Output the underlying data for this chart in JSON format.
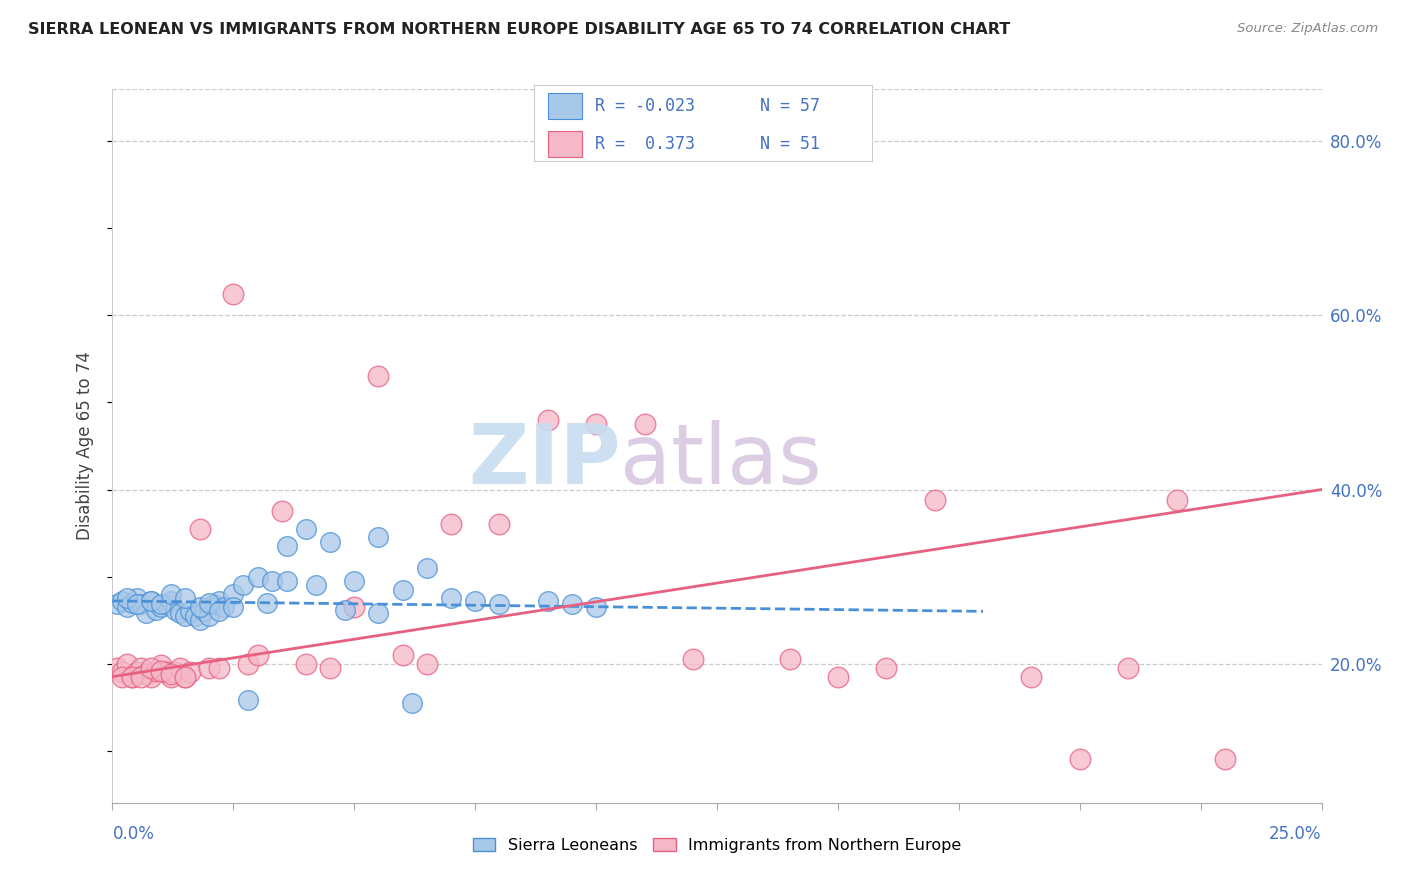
{
  "title": "SIERRA LEONEAN VS IMMIGRANTS FROM NORTHERN EUROPE DISABILITY AGE 65 TO 74 CORRELATION CHART",
  "source": "Source: ZipAtlas.com",
  "ylabel": "Disability Age 65 to 74",
  "ytick_vals": [
    0.2,
    0.4,
    0.6,
    0.8
  ],
  "xlim": [
    0.0,
    0.25
  ],
  "ylim": [
    0.04,
    0.86
  ],
  "color_blue": "#a8c8e8",
  "color_pink": "#f5b8c8",
  "color_blue_line": "#4a90d9",
  "color_pink_line": "#e86080",
  "watermark_zip_color": "#c8ddf0",
  "watermark_atlas_color": "#d8c8e0",
  "sierra_x": [
    0.001,
    0.002,
    0.003,
    0.004,
    0.005,
    0.006,
    0.007,
    0.008,
    0.009,
    0.01,
    0.011,
    0.012,
    0.013,
    0.014,
    0.015,
    0.016,
    0.017,
    0.018,
    0.019,
    0.02,
    0.021,
    0.022,
    0.023,
    0.025,
    0.027,
    0.03,
    0.033,
    0.036,
    0.04,
    0.045,
    0.05,
    0.055,
    0.06,
    0.065,
    0.07,
    0.075,
    0.08,
    0.09,
    0.095,
    0.1,
    0.003,
    0.005,
    0.008,
    0.01,
    0.012,
    0.015,
    0.018,
    0.02,
    0.022,
    0.025,
    0.028,
    0.032,
    0.036,
    0.042,
    0.048,
    0.055,
    0.062
  ],
  "sierra_y": [
    0.268,
    0.272,
    0.265,
    0.27,
    0.275,
    0.268,
    0.258,
    0.272,
    0.262,
    0.265,
    0.268,
    0.272,
    0.262,
    0.258,
    0.255,
    0.26,
    0.255,
    0.25,
    0.26,
    0.255,
    0.268,
    0.272,
    0.265,
    0.28,
    0.29,
    0.3,
    0.295,
    0.295,
    0.355,
    0.34,
    0.295,
    0.345,
    0.285,
    0.31,
    0.275,
    0.272,
    0.268,
    0.272,
    0.268,
    0.265,
    0.275,
    0.268,
    0.272,
    0.268,
    0.28,
    0.275,
    0.265,
    0.27,
    0.26,
    0.265,
    0.158,
    0.27,
    0.335,
    0.29,
    0.262,
    0.258,
    0.155
  ],
  "northern_x": [
    0.001,
    0.002,
    0.003,
    0.004,
    0.005,
    0.006,
    0.007,
    0.008,
    0.009,
    0.01,
    0.011,
    0.012,
    0.013,
    0.014,
    0.015,
    0.016,
    0.018,
    0.02,
    0.022,
    0.025,
    0.028,
    0.03,
    0.035,
    0.04,
    0.045,
    0.05,
    0.055,
    0.06,
    0.065,
    0.07,
    0.08,
    0.09,
    0.1,
    0.11,
    0.12,
    0.14,
    0.15,
    0.16,
    0.17,
    0.19,
    0.2,
    0.21,
    0.22,
    0.23,
    0.002,
    0.004,
    0.006,
    0.008,
    0.01,
    0.012,
    0.015
  ],
  "northern_y": [
    0.195,
    0.19,
    0.2,
    0.185,
    0.19,
    0.195,
    0.188,
    0.185,
    0.192,
    0.198,
    0.19,
    0.185,
    0.19,
    0.195,
    0.185,
    0.19,
    0.355,
    0.195,
    0.195,
    0.625,
    0.2,
    0.21,
    0.375,
    0.2,
    0.195,
    0.265,
    0.53,
    0.21,
    0.2,
    0.36,
    0.36,
    0.48,
    0.475,
    0.475,
    0.205,
    0.205,
    0.185,
    0.195,
    0.388,
    0.185,
    0.09,
    0.195,
    0.388,
    0.09,
    0.185,
    0.185,
    0.185,
    0.195,
    0.192,
    0.188,
    0.185
  ],
  "blue_line_x": [
    0.0,
    0.18
  ],
  "blue_line_y": [
    0.272,
    0.26
  ],
  "pink_line_x": [
    0.0,
    0.25
  ],
  "pink_line_y": [
    0.185,
    0.4
  ]
}
